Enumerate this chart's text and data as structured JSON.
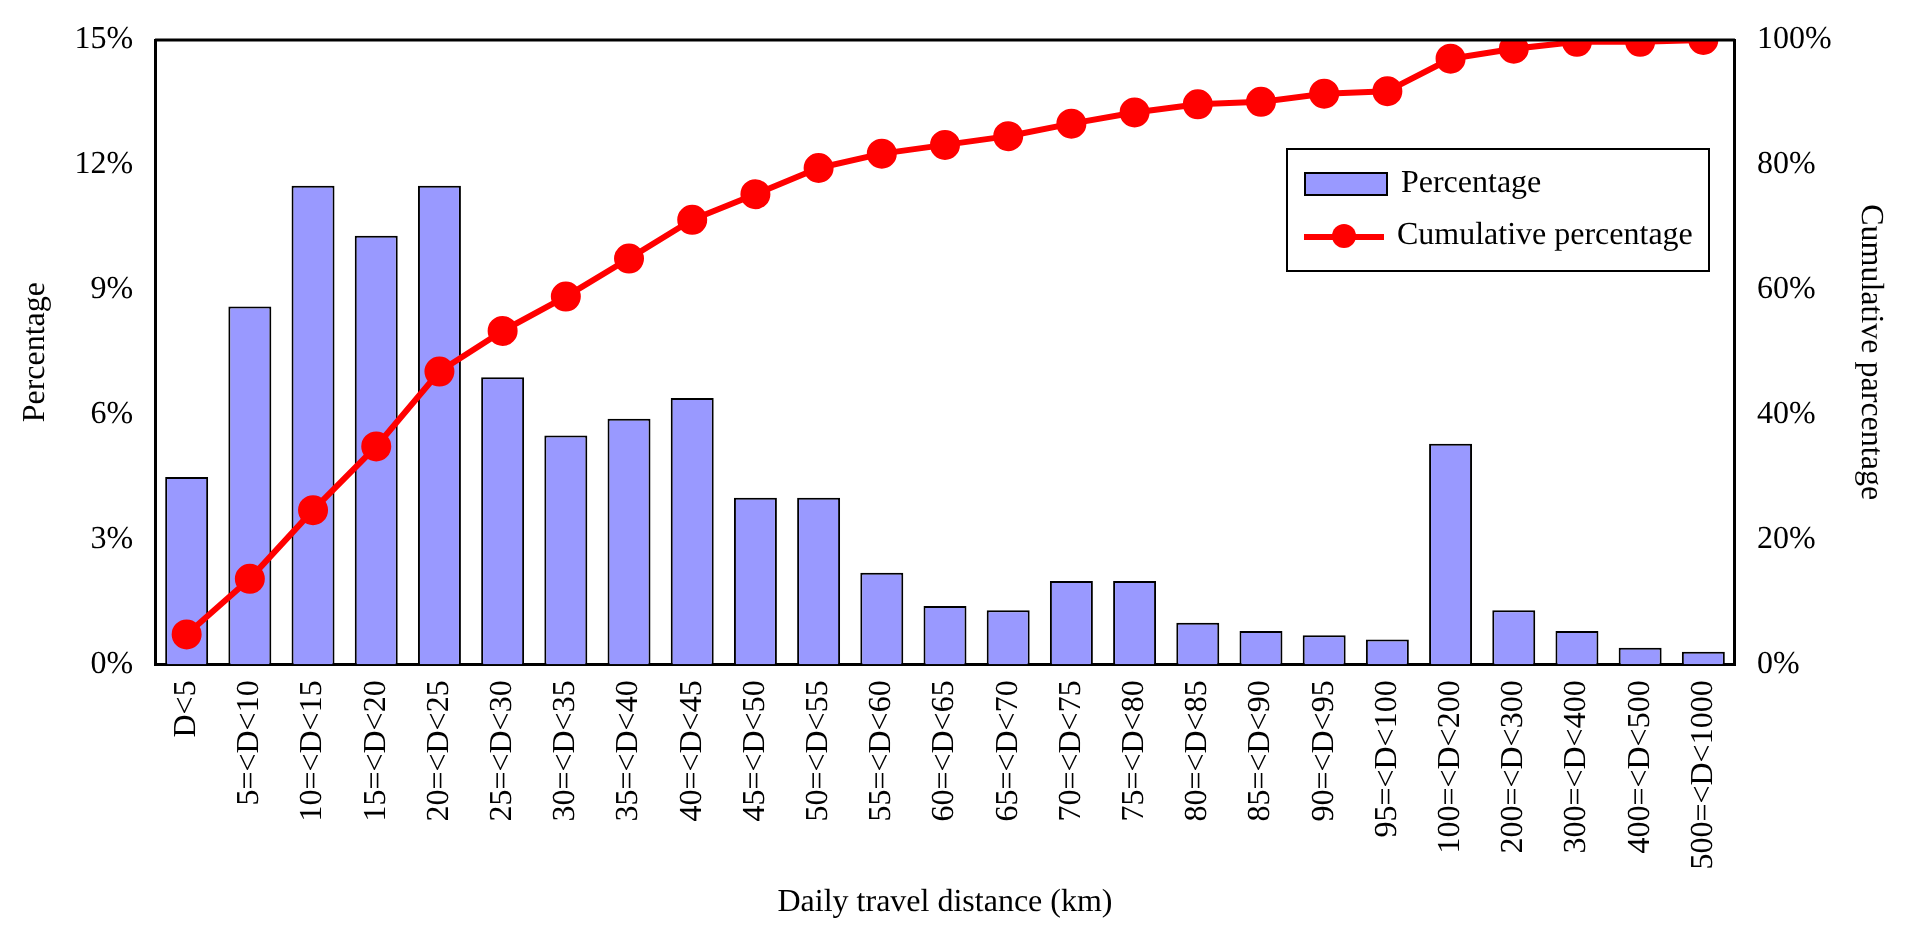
{
  "chart_data": {
    "type": "bar",
    "xlabel": "Daily travel distance (km)",
    "ylabel": "Percentage",
    "y2label": "Cumulative parcentage",
    "categories": [
      "D<5",
      "5=<D<10",
      "10=<D<15",
      "15=<D<20",
      "20=<D<25",
      "25=<D<30",
      "30=<D<35",
      "35=<D<40",
      "40=<D<45",
      "45=<D<50",
      "50=<D<55",
      "55=<D<60",
      "60=<D<65",
      "65=<D<70",
      "70=<D<75",
      "75=<D<80",
      "80=<D<85",
      "85=<D<90",
      "90=<D<95",
      "95=<D<100",
      "100=<D<200",
      "200=<D<300",
      "300=<D<400",
      "400=<D<500",
      "500=<D<1000"
    ],
    "series": [
      {
        "name": "Percentage",
        "color": "#9999ff",
        "values": [
          4.5,
          8.6,
          11.5,
          10.3,
          11.5,
          6.9,
          5.5,
          5.9,
          6.4,
          4.0,
          4.0,
          2.2,
          1.4,
          1.3,
          2.0,
          2.0,
          1.0,
          0.8,
          0.7,
          0.6,
          5.3,
          1.3,
          0.8,
          0.4,
          0.3
        ]
      },
      {
        "name": "Cumulative percentage",
        "type": "line",
        "axis": "y2",
        "color": "#ff0000",
        "marker": "circle",
        "values": [
          4.8,
          13.7,
          24.7,
          34.9,
          46.9,
          53.4,
          58.9,
          65.0,
          71.2,
          75.3,
          79.5,
          81.8,
          83.2,
          84.6,
          86.6,
          88.4,
          89.7,
          90.1,
          91.4,
          91.8,
          97.0,
          98.6,
          99.7,
          99.7,
          100
        ]
      }
    ],
    "ylim": [
      0,
      15
    ],
    "yticks": [
      {
        "value": 0,
        "label": "0%"
      },
      {
        "value": 3,
        "label": "3%"
      },
      {
        "value": 6,
        "label": "6%"
      },
      {
        "value": 9,
        "label": "9%"
      },
      {
        "value": 12,
        "label": "12%"
      },
      {
        "value": 15,
        "label": "15%"
      }
    ],
    "y2lim": [
      0,
      100
    ],
    "y2ticks": [
      {
        "value": 0,
        "label": "0%"
      },
      {
        "value": 20,
        "label": "20%"
      },
      {
        "value": 40,
        "label": "40%"
      },
      {
        "value": 60,
        "label": "60%"
      },
      {
        "value": 80,
        "label": "80%"
      },
      {
        "value": 100,
        "label": "100%"
      }
    ],
    "grid": false,
    "legend": "top right"
  }
}
